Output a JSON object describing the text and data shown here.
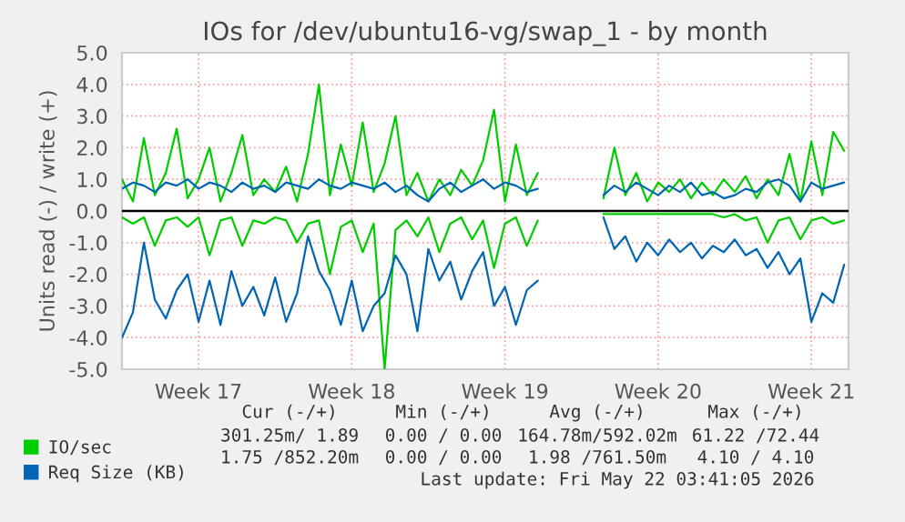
{
  "chart_data": {
    "type": "line",
    "title": "IOs for /dev/ubuntu16-vg/swap_1 - by month",
    "ylabel": "Units read (-) / write (+)",
    "categories": [
      null,
      null,
      null,
      null,
      null,
      null,
      null,
      "Week 17",
      null,
      null,
      null,
      null,
      null,
      null,
      null,
      null,
      null,
      null,
      null,
      null,
      null,
      "Week 18",
      null,
      null,
      null,
      null,
      null,
      null,
      null,
      null,
      null,
      null,
      null,
      null,
      null,
      "Week 19",
      null,
      null,
      null,
      null,
      null,
      null,
      null,
      null,
      null,
      null,
      null,
      null,
      null,
      "Week 20",
      null,
      null,
      null,
      null,
      null,
      null,
      null,
      null,
      null,
      null,
      null,
      null,
      null,
      "Week 21",
      null,
      null,
      null
    ],
    "series": [
      {
        "name": "IO/sec",
        "color": "#00cc00",
        "values": [
          1.0,
          0.3,
          2.3,
          0.5,
          1.2,
          2.6,
          0.4,
          1.0,
          2.0,
          0.3,
          1.2,
          2.4,
          0.5,
          1.0,
          0.6,
          1.4,
          0.3,
          1.8,
          4.0,
          0.5,
          2.1,
          0.8,
          2.8,
          0.6,
          1.5,
          3.0,
          0.5,
          1.2,
          0.3,
          1.0,
          0.5,
          1.3,
          0.8,
          1.6,
          3.2,
          0.3,
          2.1,
          0.5,
          1.2,
          null,
          null,
          null,
          null,
          null,
          0.4,
          2.0,
          0.5,
          1.2,
          0.3,
          0.9,
          0.6,
          1.0,
          0.4,
          0.9,
          0.5,
          1.0,
          0.6,
          1.1,
          0.4,
          1.0,
          0.5,
          1.8,
          0.3,
          2.2,
          0.5,
          2.5,
          1.9
        ]
      },
      {
        "color": "#00cc00",
        "values": [
          -0.2,
          -0.4,
          -0.2,
          -1.1,
          -0.3,
          -0.2,
          -0.5,
          -0.2,
          -1.4,
          -0.3,
          -0.2,
          -1.1,
          -0.3,
          -0.4,
          -0.2,
          -0.3,
          -1.0,
          -0.4,
          -0.3,
          -2.0,
          -0.5,
          -0.3,
          -1.3,
          -0.4,
          -5.0,
          -0.6,
          -0.3,
          -0.8,
          -0.2,
          -1.3,
          -0.4,
          -0.2,
          -0.9,
          -0.3,
          -1.8,
          -0.4,
          -0.2,
          -1.1,
          -0.3,
          null,
          null,
          null,
          null,
          null,
          -0.1,
          -0.1,
          -0.1,
          -0.1,
          -0.1,
          -0.1,
          -0.1,
          -0.1,
          -0.1,
          -0.1,
          -0.1,
          -0.2,
          -0.1,
          -0.3,
          -0.2,
          -1.0,
          -0.3,
          -0.2,
          -0.9,
          -0.3,
          -0.2,
          -0.4,
          -0.3
        ]
      },
      {
        "name": "Req Size (KB)",
        "color": "#0066b3",
        "values": [
          0.7,
          0.9,
          0.8,
          0.6,
          0.9,
          0.8,
          1.0,
          0.7,
          0.9,
          0.8,
          0.6,
          0.9,
          0.7,
          0.8,
          0.6,
          0.9,
          0.8,
          0.7,
          1.0,
          0.8,
          0.7,
          0.9,
          0.8,
          0.7,
          0.9,
          0.6,
          0.8,
          0.5,
          0.3,
          0.7,
          0.9,
          0.6,
          0.8,
          1.0,
          0.7,
          0.9,
          0.8,
          0.6,
          0.7,
          null,
          null,
          null,
          null,
          null,
          0.5,
          0.8,
          0.6,
          0.9,
          0.7,
          0.5,
          0.8,
          0.6,
          0.9,
          0.5,
          0.6,
          0.4,
          0.5,
          0.7,
          0.6,
          0.9,
          1.0,
          0.8,
          0.3,
          0.9,
          0.7,
          0.8,
          0.9
        ]
      },
      {
        "color": "#0066b3",
        "values": [
          -4.0,
          -3.2,
          -1.0,
          -2.8,
          -3.4,
          -2.5,
          -2.0,
          -3.5,
          -2.2,
          -3.6,
          -1.9,
          -3.0,
          -2.4,
          -3.3,
          -2.1,
          -3.5,
          -2.6,
          -0.8,
          -1.9,
          -2.5,
          -3.6,
          -2.2,
          -3.8,
          -3.0,
          -2.6,
          -1.4,
          -2.0,
          -3.8,
          -1.2,
          -2.2,
          -1.6,
          -2.8,
          -1.9,
          -1.3,
          -3.0,
          -2.4,
          -3.6,
          -2.5,
          -2.2,
          null,
          null,
          null,
          null,
          null,
          -0.2,
          -1.2,
          -0.8,
          -1.6,
          -1.0,
          -1.4,
          -0.9,
          -1.3,
          -1.0,
          -1.5,
          -1.1,
          -1.3,
          -0.9,
          -1.4,
          -1.2,
          -1.8,
          -1.3,
          -2.0,
          -1.5,
          -3.5,
          -2.6,
          -2.9,
          -1.7
        ]
      }
    ],
    "ylim": [
      -5,
      5
    ],
    "yticks": [
      {
        "value": -5,
        "label": "-5.0"
      },
      {
        "value": -4,
        "label": "-4.0"
      },
      {
        "value": -3,
        "label": "-3.0"
      },
      {
        "value": -2,
        "label": "-2.0"
      },
      {
        "value": -1,
        "label": "-1.0"
      },
      {
        "value": 0,
        "label": "0.0"
      },
      {
        "value": 1,
        "label": "1.0"
      },
      {
        "value": 2,
        "label": "2.0"
      },
      {
        "value": 3,
        "label": "3.0"
      },
      {
        "value": 4,
        "label": "4.0"
      },
      {
        "value": 5,
        "label": "5.0"
      }
    ],
    "ref_lines": [
      {
        "axis": "y",
        "value": 0,
        "color": "#000000"
      }
    ],
    "grid": true,
    "legend": "bottom",
    "line_style": "solid",
    "marker": "none",
    "annotations": [
      "Cur (-/+)",
      "Min (-/+)",
      "Avg (-/+)",
      "Max (-/+)",
      "301.25m/ 1.89",
      "0.00 / 0.00",
      "164.78m/592.02m",
      "61.22 /72.44",
      "1.75 /852.20m",
      "0.00 / 0.00",
      "1.98 /761.50m",
      "4.10 / 4.10",
      "Last update: Fri May 22 03:41:05 2026"
    ]
  }
}
